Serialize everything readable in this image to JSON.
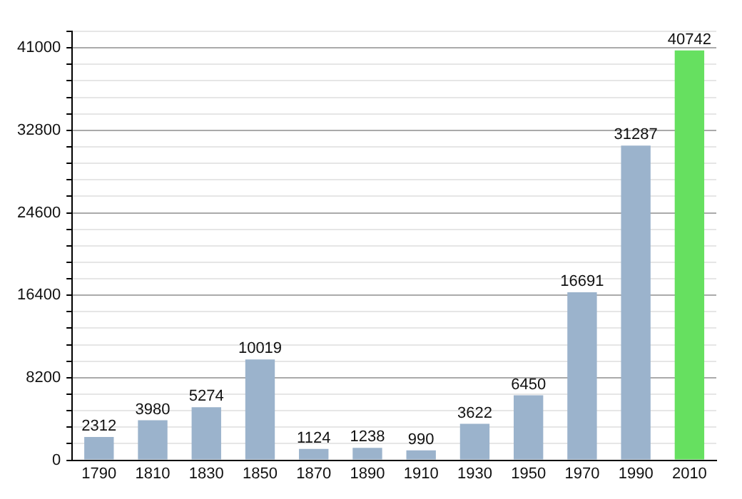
{
  "chart_data": {
    "type": "bar",
    "categories": [
      "1790",
      "1810",
      "1830",
      "1850",
      "1870",
      "1890",
      "1910",
      "1930",
      "1950",
      "1970",
      "1990",
      "2010"
    ],
    "values": [
      2312,
      3980,
      5274,
      10019,
      1124,
      1238,
      990,
      3622,
      6450,
      16691,
      31287,
      40742
    ],
    "colors": [
      "#9bb3cc",
      "#9bb3cc",
      "#9bb3cc",
      "#9bb3cc",
      "#9bb3cc",
      "#9bb3cc",
      "#9bb3cc",
      "#9bb3cc",
      "#9bb3cc",
      "#9bb3cc",
      "#9bb3cc",
      "#66e060"
    ],
    "ylim": [
      0,
      42640
    ],
    "yticks": [
      0,
      {
        "value": 1640,
        "label": null
      },
      {
        "value": 3280,
        "label": null
      },
      {
        "value": 4920,
        "label": null
      },
      {
        "value": 6560,
        "label": null
      },
      8200,
      {
        "value": 9840,
        "label": null
      },
      {
        "value": 11480,
        "label": null
      },
      {
        "value": 13120,
        "label": null
      },
      {
        "value": 14760,
        "label": null
      },
      16400,
      {
        "value": 18040,
        "label": null
      },
      {
        "value": 19680,
        "label": null
      },
      {
        "value": 21320,
        "label": null
      },
      {
        "value": 22960,
        "label": null
      },
      24600,
      {
        "value": 26240,
        "label": null
      },
      {
        "value": 27880,
        "label": null
      },
      {
        "value": 29520,
        "label": null
      },
      {
        "value": 31160,
        "label": null
      },
      32800,
      {
        "value": 34440,
        "label": null
      },
      {
        "value": 36080,
        "label": null
      },
      {
        "value": 37720,
        "label": null
      },
      {
        "value": 39360,
        "label": null
      },
      41000,
      {
        "value": 42640,
        "label": null
      }
    ],
    "grid": "y",
    "data_labels": true,
    "legend": false
  }
}
